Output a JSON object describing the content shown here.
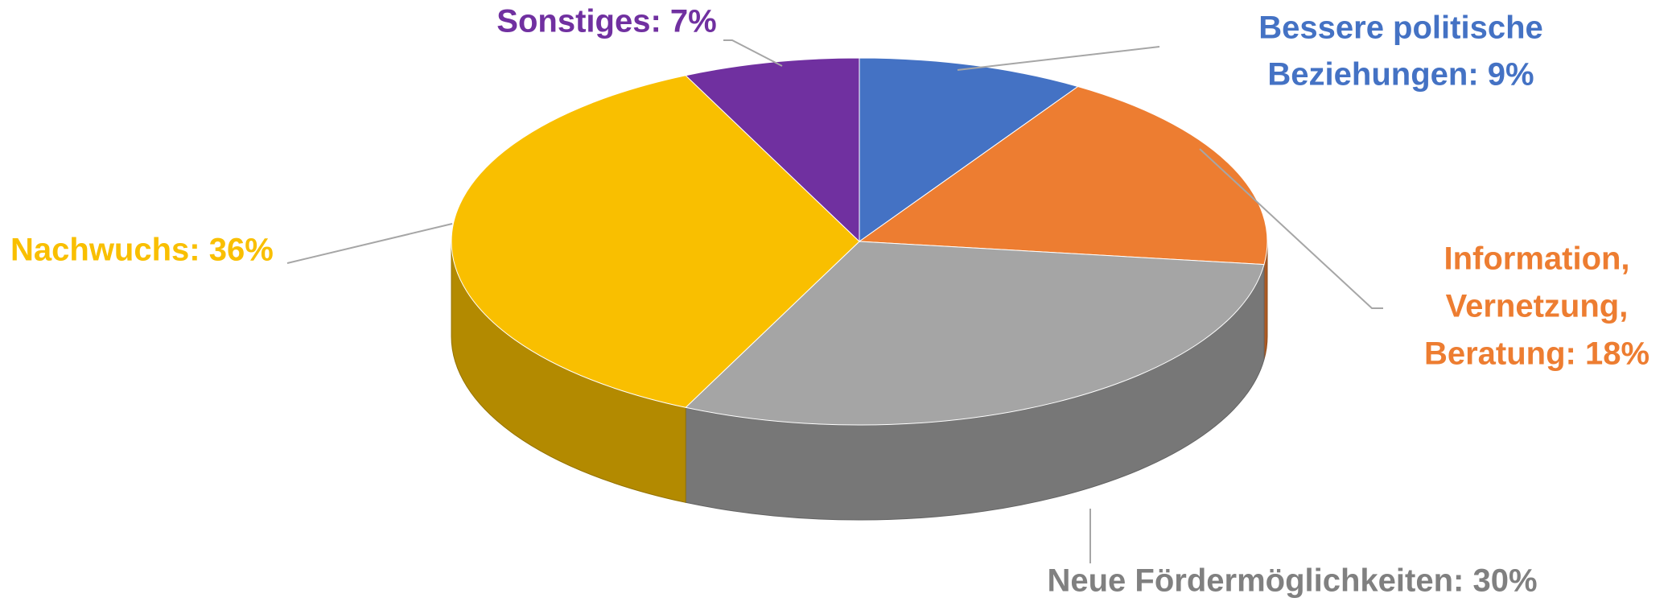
{
  "chart_data": {
    "type": "pie3d",
    "categories": [
      "Bessere politische Beziehungen",
      "Information, Vernetzung, Beratung",
      "Neue Fördermöglichkeiten",
      "Nachwuchs",
      "Sonstiges"
    ],
    "values": [
      9,
      18,
      30,
      36,
      7
    ],
    "labels": [
      [
        "Bessere politische",
        "Beziehungen: 9%"
      ],
      [
        "Information,",
        "Vernetzung,",
        "Beratung: 18%"
      ],
      [
        "Neue Fördermöglichkeiten: 30%"
      ],
      [
        "Nachwuchs: 36%"
      ],
      [
        "Sonstiges: 7%"
      ]
    ],
    "colors": [
      "#4472c4",
      "#ed7d31",
      "#a5a5a5",
      "#f9bf00",
      "#7030a0"
    ],
    "label_colors": [
      "#4472c4",
      "#ed7d31",
      "#808080",
      "#f9bf00",
      "#7030a0"
    ]
  }
}
